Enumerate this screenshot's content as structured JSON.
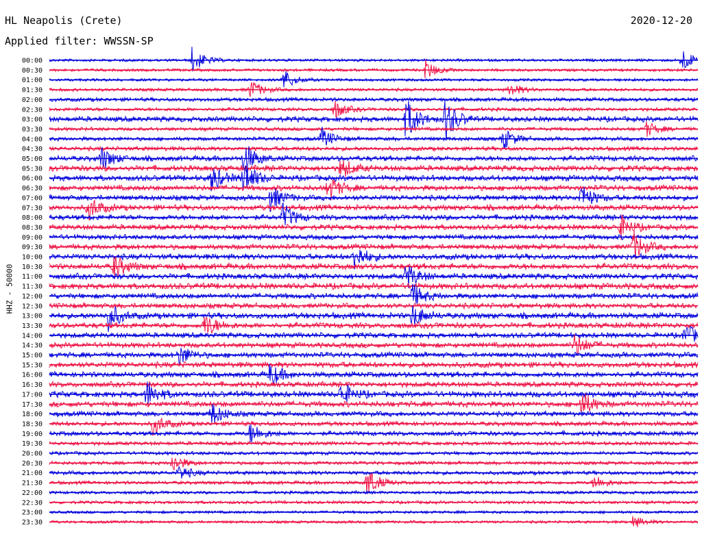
{
  "header": {
    "station": "HL Neapolis (Crete)",
    "date": "2020-12-20",
    "filter": "Applied filter: WWSSN-SP"
  },
  "chart_data": {
    "type": "line",
    "title": "HL Neapolis (Crete)",
    "date": "2020-12-20",
    "filter_label": "Applied filter: WWSSN-SP",
    "ylabel": "HHZ - 50000",
    "row_labels": [
      "00:00",
      "00:30",
      "01:00",
      "01:30",
      "02:00",
      "02:30",
      "03:00",
      "03:30",
      "04:00",
      "04:30",
      "05:00",
      "05:30",
      "06:00",
      "06:30",
      "07:00",
      "07:30",
      "08:00",
      "08:30",
      "09:00",
      "09:30",
      "10:00",
      "10:30",
      "11:00",
      "11:30",
      "12:00",
      "12:30",
      "13:00",
      "13:30",
      "14:00",
      "14:30",
      "15:00",
      "15:30",
      "16:00",
      "16:30",
      "17:00",
      "17:30",
      "18:00",
      "18:30",
      "19:00",
      "19:30",
      "20:00",
      "20:30",
      "21:00",
      "21:30",
      "22:00",
      "22:30",
      "23:00",
      "23:30"
    ],
    "series_colors": [
      "#0000dd",
      "#ee1144"
    ],
    "activity": [
      0.3,
      0.3,
      0.3,
      0.4,
      0.6,
      0.5,
      1.0,
      0.5,
      0.6,
      0.7,
      1.0,
      1.1,
      1.1,
      1.0,
      1.0,
      1.1,
      1.0,
      1.0,
      0.9,
      1.0,
      1.1,
      1.2,
      1.1,
      1.2,
      1.0,
      1.0,
      1.2,
      1.1,
      1.0,
      1.0,
      1.0,
      1.1,
      1.1,
      1.0,
      1.2,
      1.1,
      0.9,
      0.8,
      0.8,
      0.6,
      0.5,
      0.5,
      0.6,
      0.5,
      0.4,
      0.4,
      0.3,
      0.3
    ],
    "events": [
      {
        "row": 0,
        "x": 0.22,
        "a": 1.8
      },
      {
        "row": 0,
        "x": 0.975,
        "a": 1.6
      },
      {
        "row": 1,
        "x": 0.58,
        "a": 1.3
      },
      {
        "row": 2,
        "x": 0.36,
        "a": 1.5
      },
      {
        "row": 3,
        "x": 0.31,
        "a": 1.3
      },
      {
        "row": 3,
        "x": 0.71,
        "a": 0.9
      },
      {
        "row": 5,
        "x": 0.44,
        "a": 1.2
      },
      {
        "row": 6,
        "x": 0.55,
        "a": 3.0
      },
      {
        "row": 6,
        "x": 0.61,
        "a": 3.0
      },
      {
        "row": 7,
        "x": 0.92,
        "a": 1.0
      },
      {
        "row": 8,
        "x": 0.42,
        "a": 1.4
      },
      {
        "row": 8,
        "x": 0.7,
        "a": 1.4
      },
      {
        "row": 10,
        "x": 0.08,
        "a": 1.6
      },
      {
        "row": 10,
        "x": 0.3,
        "a": 2.2
      },
      {
        "row": 11,
        "x": 0.45,
        "a": 1.4
      },
      {
        "row": 12,
        "x": 0.25,
        "a": 1.8
      },
      {
        "row": 12,
        "x": 0.3,
        "a": 2.4
      },
      {
        "row": 13,
        "x": 0.43,
        "a": 1.8
      },
      {
        "row": 14,
        "x": 0.34,
        "a": 1.8
      },
      {
        "row": 14,
        "x": 0.82,
        "a": 1.8
      },
      {
        "row": 15,
        "x": 0.06,
        "a": 1.6
      },
      {
        "row": 16,
        "x": 0.36,
        "a": 1.8
      },
      {
        "row": 17,
        "x": 0.88,
        "a": 1.6
      },
      {
        "row": 19,
        "x": 0.9,
        "a": 2.0
      },
      {
        "row": 20,
        "x": 0.47,
        "a": 1.8
      },
      {
        "row": 21,
        "x": 0.1,
        "a": 1.6
      },
      {
        "row": 22,
        "x": 0.55,
        "a": 1.8
      },
      {
        "row": 24,
        "x": 0.56,
        "a": 1.6
      },
      {
        "row": 26,
        "x": 0.09,
        "a": 2.0
      },
      {
        "row": 26,
        "x": 0.56,
        "a": 1.6
      },
      {
        "row": 27,
        "x": 0.24,
        "a": 1.6
      },
      {
        "row": 28,
        "x": 0.98,
        "a": 1.6
      },
      {
        "row": 29,
        "x": 0.81,
        "a": 1.6
      },
      {
        "row": 30,
        "x": 0.2,
        "a": 1.4
      },
      {
        "row": 32,
        "x": 0.34,
        "a": 1.6
      },
      {
        "row": 34,
        "x": 0.15,
        "a": 1.8
      },
      {
        "row": 34,
        "x": 0.45,
        "a": 1.6
      },
      {
        "row": 35,
        "x": 0.82,
        "a": 1.8
      },
      {
        "row": 36,
        "x": 0.25,
        "a": 1.6
      },
      {
        "row": 37,
        "x": 0.16,
        "a": 1.4
      },
      {
        "row": 38,
        "x": 0.31,
        "a": 1.4
      },
      {
        "row": 41,
        "x": 0.19,
        "a": 1.2
      },
      {
        "row": 42,
        "x": 0.2,
        "a": 1.0
      },
      {
        "row": 43,
        "x": 0.49,
        "a": 2.0
      },
      {
        "row": 43,
        "x": 0.84,
        "a": 1.0
      },
      {
        "row": 47,
        "x": 0.9,
        "a": 0.8
      }
    ]
  }
}
